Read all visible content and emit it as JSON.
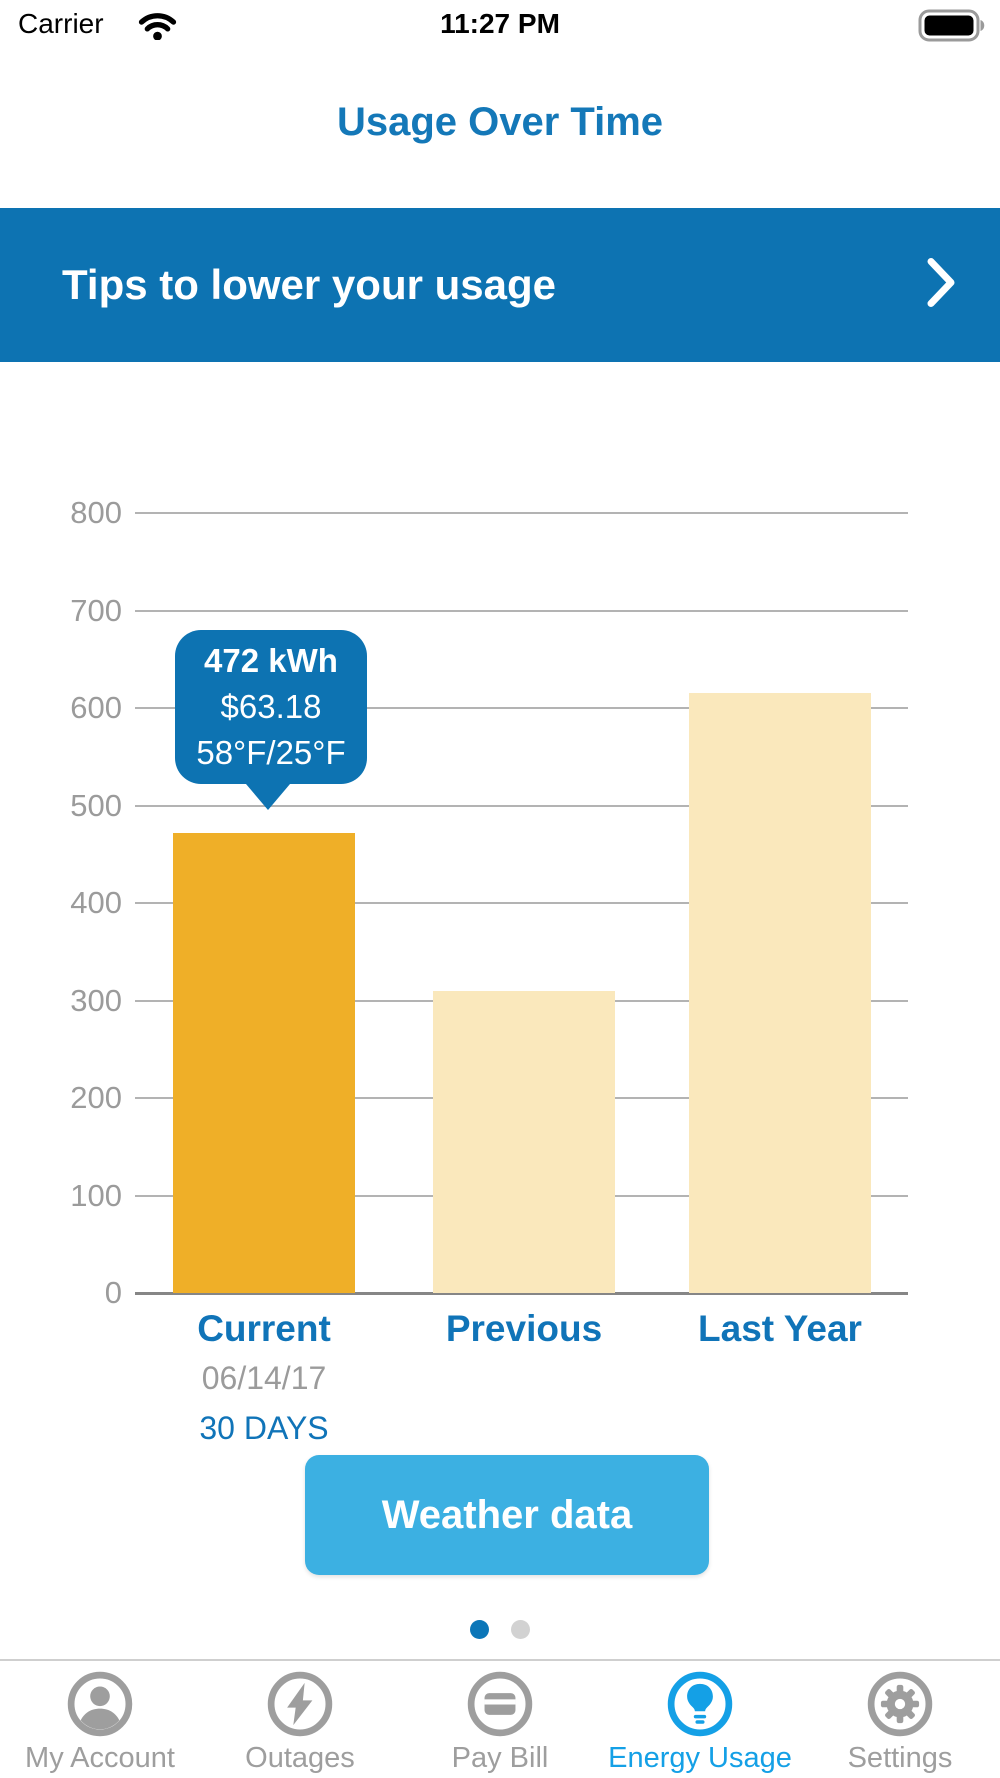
{
  "status_bar": {
    "carrier": "Carrier",
    "time": "11:27 PM"
  },
  "header": {
    "title": "Usage Over Time"
  },
  "tips_banner": {
    "label": "Tips to lower your usage"
  },
  "chart_data": {
    "type": "bar",
    "title": "Usage Over Time",
    "categories": [
      "Current",
      "Previous",
      "Last Year"
    ],
    "values": [
      472,
      310,
      615
    ],
    "bar_colors": [
      "#efaf28",
      "#fae8bc",
      "#fae8bc"
    ],
    "ylim": [
      0,
      800
    ],
    "ytick_interval": 100,
    "xlabel": "",
    "ylabel": "",
    "grid": "horizontal",
    "legend": "none",
    "sub_labels": {
      "date": "06/14/17",
      "period": "30 DAYS"
    },
    "tooltip": {
      "target": "Current",
      "lines": [
        "472 kWh",
        "$63.18",
        "58°F/25°F"
      ]
    }
  },
  "weather_button": {
    "label": "Weather data"
  },
  "carousel": {
    "dot_count": 2,
    "active_index": 0
  },
  "tab_bar": {
    "items": [
      {
        "label": "My Account",
        "icon": "person-icon",
        "active": false
      },
      {
        "label": "Outages",
        "icon": "lightning-icon",
        "active": false
      },
      {
        "label": "Pay Bill",
        "icon": "card-icon",
        "active": false
      },
      {
        "label": "Energy Usage",
        "icon": "lightbulb-icon",
        "active": true
      },
      {
        "label": "Settings",
        "icon": "gear-icon",
        "active": false
      }
    ]
  },
  "colors": {
    "primary_blue": "#0d73b2",
    "title_blue": "#1478b8",
    "label_blue": "#1074b8",
    "current_bar_orange": "#efaf28",
    "comparison_bar_cream": "#fae8bc",
    "weather_button_blue": "#3cb0e2",
    "active_tab_blue": "#14a0e6",
    "inactive_gray": "#9e9e9e",
    "gridline_gray": "#b3b3b3"
  }
}
